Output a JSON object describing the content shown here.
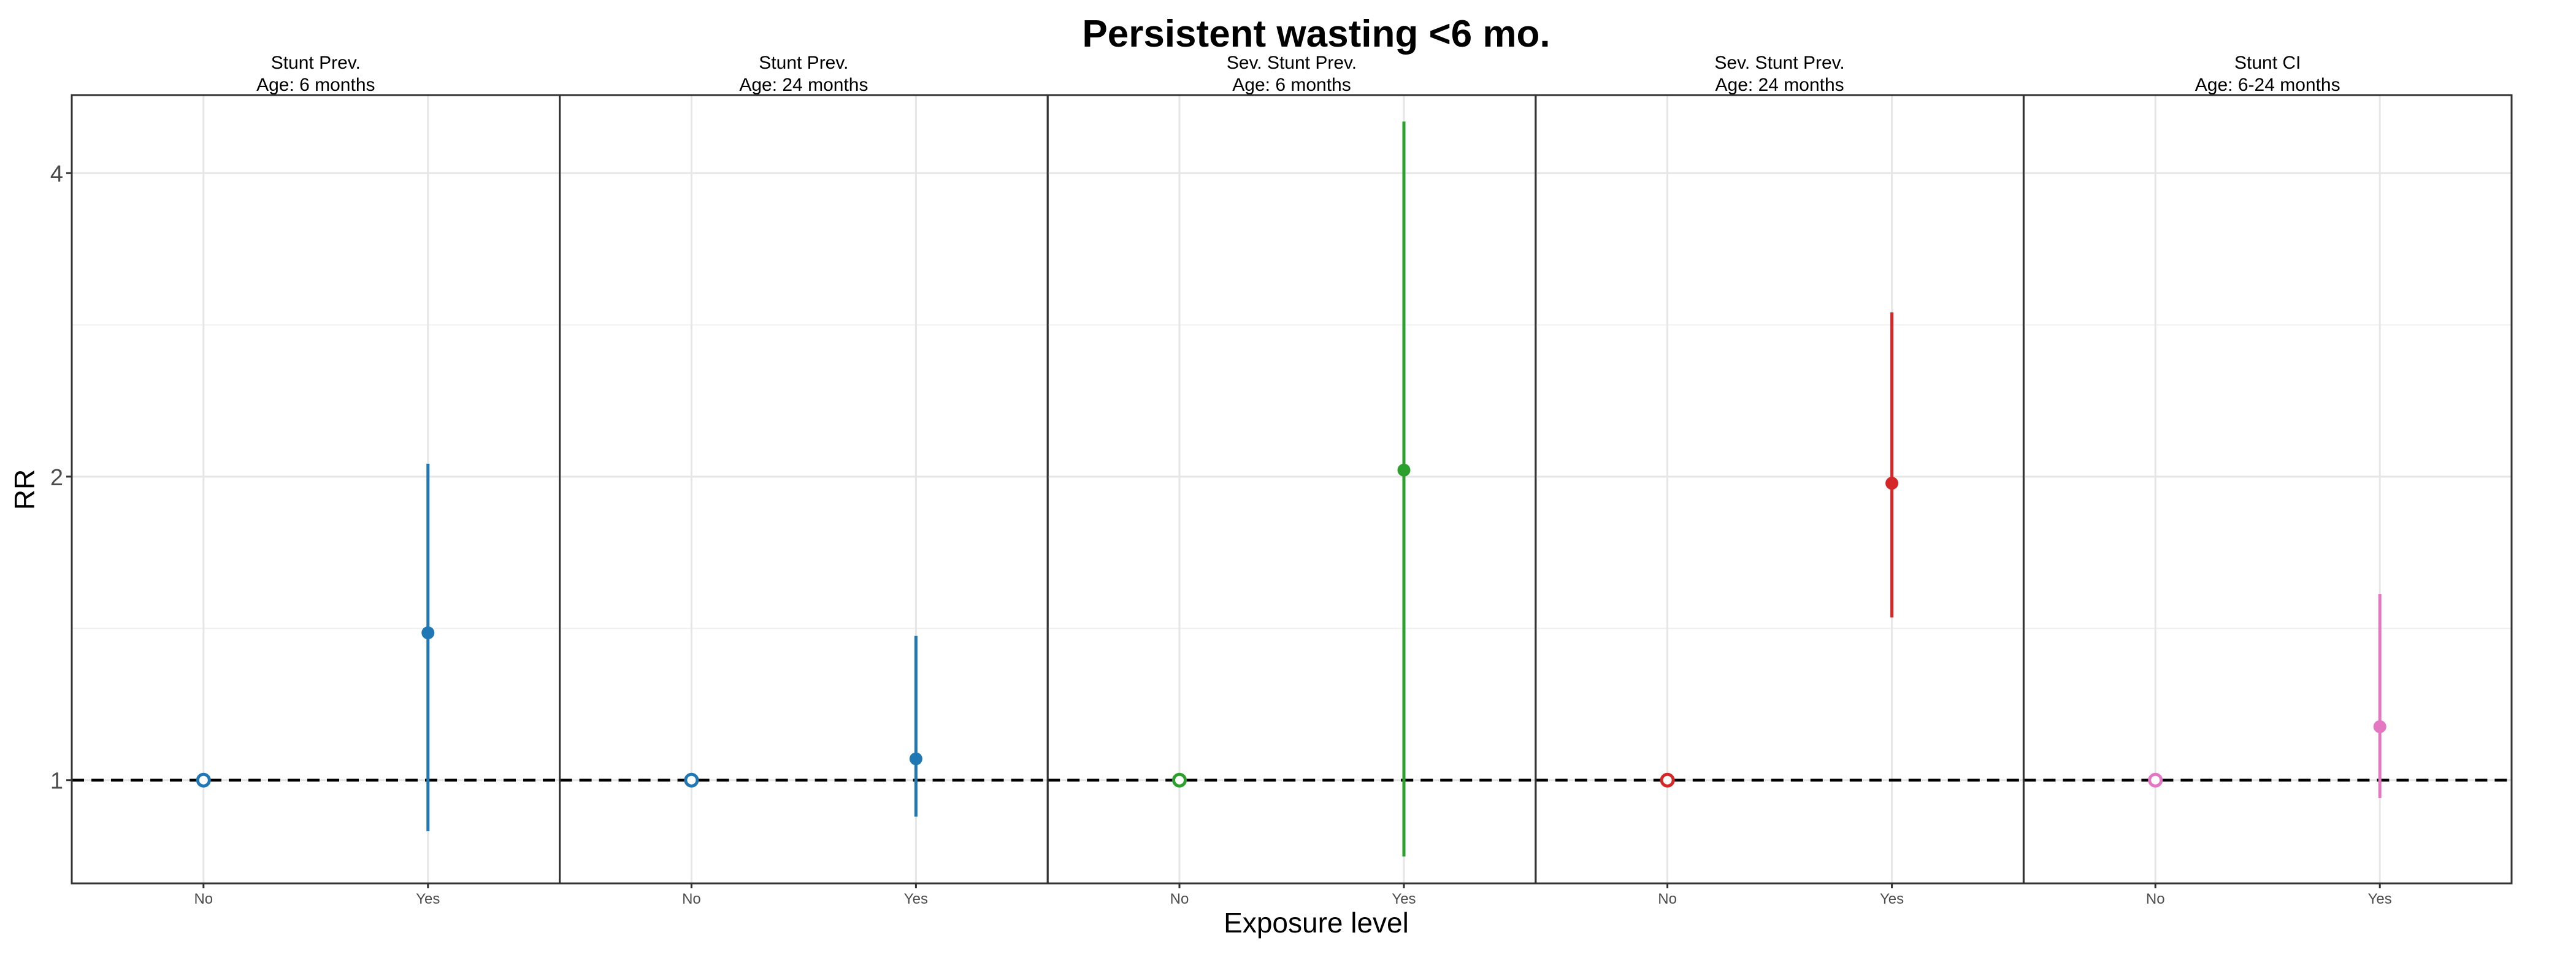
{
  "chart_data": {
    "type": "scatter",
    "title": "Persistent wasting  <6 mo.",
    "xlabel": "Exposure level",
    "ylabel": "RR",
    "y_scale": "log",
    "ylim": [
      0.79,
      4.78
    ],
    "y_ticks": [
      1,
      2,
      4
    ],
    "y_tick_labels": [
      "1",
      "2",
      "4"
    ],
    "x_categories": [
      "No",
      "Yes"
    ],
    "reference_line": {
      "y": 1,
      "style": "dashed"
    },
    "grid": true,
    "panels": [
      {
        "title_line1": "Stunt Prev.",
        "title_line2": "Age: 6 months",
        "color": "#1f77b4",
        "points": [
          {
            "x": "No",
            "y": 1.0,
            "lower": 1.0,
            "upper": 1.0
          },
          {
            "x": "Yes",
            "y": 1.4,
            "lower": 0.89,
            "upper": 2.06
          }
        ]
      },
      {
        "title_line1": "Stunt Prev.",
        "title_line2": "Age: 24 months",
        "color": "#1f77b4",
        "points": [
          {
            "x": "No",
            "y": 1.0,
            "lower": 1.0,
            "upper": 1.0
          },
          {
            "x": "Yes",
            "y": 1.05,
            "lower": 0.92,
            "upper": 1.39
          }
        ]
      },
      {
        "title_line1": "Sev. Stunt Prev.",
        "title_line2": "Age: 6 months",
        "color": "#2ca02c",
        "points": [
          {
            "x": "No",
            "y": 1.0,
            "lower": 1.0,
            "upper": 1.0
          },
          {
            "x": "Yes",
            "y": 2.03,
            "lower": 0.84,
            "upper": 4.5
          }
        ]
      },
      {
        "title_line1": "Sev. Stunt Prev.",
        "title_line2": "Age: 24 months",
        "color": "#d62728",
        "points": [
          {
            "x": "No",
            "y": 1.0,
            "lower": 1.0,
            "upper": 1.0
          },
          {
            "x": "Yes",
            "y": 1.97,
            "lower": 1.45,
            "upper": 2.91
          }
        ]
      },
      {
        "title_line1": "Stunt CI",
        "title_line2": "Age: 6-24 months",
        "color": "#e377c2",
        "points": [
          {
            "x": "No",
            "y": 1.0,
            "lower": 1.0,
            "upper": 1.0
          },
          {
            "x": "Yes",
            "y": 1.13,
            "lower": 0.96,
            "upper": 1.53
          }
        ]
      }
    ]
  }
}
